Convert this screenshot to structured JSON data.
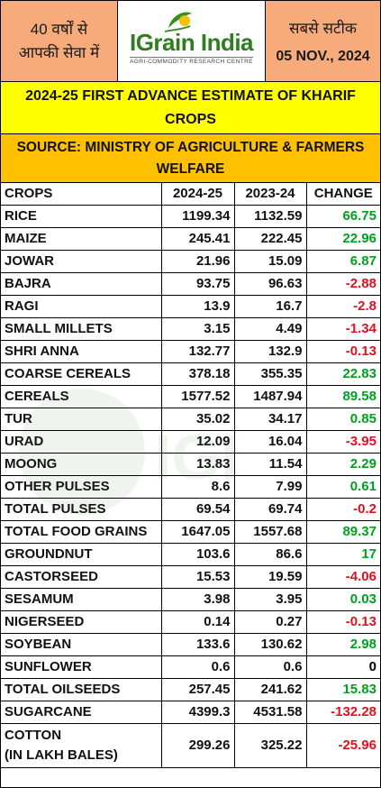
{
  "header": {
    "left_line1": "40 वर्षों से",
    "left_line2": "आपकी सेवा में",
    "brand_name": "IGrain India",
    "brand_tagline": "AGRI-COMMODITY RESEARCH CENTRE",
    "right_line1": "सबसे सटीक",
    "date": "05 NOV., 2024"
  },
  "title": "2024-25 FIRST ADVANCE ESTIMATE OF KHARIF CROPS",
  "source": "SOURCE: MINISTRY OF AGRICULTURE & FARMERS WELFARE",
  "table": {
    "headers": [
      "CROPS",
      "2024-25",
      "2023-24",
      "CHANGE"
    ],
    "rows": [
      {
        "crop": "RICE",
        "y2425": "1199.34",
        "y2324": "1132.59",
        "change": "66.75",
        "sign": "pos"
      },
      {
        "crop": "MAIZE",
        "y2425": "245.41",
        "y2324": "222.45",
        "change": "22.96",
        "sign": "pos"
      },
      {
        "crop": "JOWAR",
        "y2425": "21.96",
        "y2324": "15.09",
        "change": "6.87",
        "sign": "pos"
      },
      {
        "crop": "BAJRA",
        "y2425": "93.75",
        "y2324": "96.63",
        "change": "-2.88",
        "sign": "neg"
      },
      {
        "crop": "RAGI",
        "y2425": "13.9",
        "y2324": "16.7",
        "change": "-2.8",
        "sign": "neg"
      },
      {
        "crop": "SMALL MILLETS",
        "y2425": "3.15",
        "y2324": "4.49",
        "change": "-1.34",
        "sign": "neg"
      },
      {
        "crop": "SHRI ANNA",
        "y2425": "132.77",
        "y2324": "132.9",
        "change": "-0.13",
        "sign": "neg"
      },
      {
        "crop": "COARSE CEREALS",
        "y2425": "378.18",
        "y2324": "355.35",
        "change": "22.83",
        "sign": "pos"
      },
      {
        "crop": "CEREALS",
        "y2425": "1577.52",
        "y2324": "1487.94",
        "change": "89.58",
        "sign": "pos"
      },
      {
        "crop": "TUR",
        "y2425": "35.02",
        "y2324": "34.17",
        "change": "0.85",
        "sign": "pos"
      },
      {
        "crop": "URAD",
        "y2425": "12.09",
        "y2324": "16.04",
        "change": "-3.95",
        "sign": "neg"
      },
      {
        "crop": "MOONG",
        "y2425": "13.83",
        "y2324": "11.54",
        "change": "2.29",
        "sign": "pos"
      },
      {
        "crop": "OTHER PULSES",
        "y2425": "8.6",
        "y2324": "7.99",
        "change": "0.61",
        "sign": "pos"
      },
      {
        "crop": "TOTAL PULSES",
        "y2425": "69.54",
        "y2324": "69.74",
        "change": "-0.2",
        "sign": "neg"
      },
      {
        "crop": "TOTAL FOOD GRAINS",
        "y2425": "1647.05",
        "y2324": "1557.68",
        "change": "89.37",
        "sign": "pos"
      },
      {
        "crop": "GROUNDNUT",
        "y2425": "103.6",
        "y2324": "86.6",
        "change": "17",
        "sign": "pos"
      },
      {
        "crop": "CASTORSEED",
        "y2425": "15.53",
        "y2324": "19.59",
        "change": "-4.06",
        "sign": "neg"
      },
      {
        "crop": "SESAMUM",
        "y2425": "3.98",
        "y2324": "3.95",
        "change": "0.03",
        "sign": "pos"
      },
      {
        "crop": "NIGERSEED",
        "y2425": "0.14",
        "y2324": "0.27",
        "change": "-0.13",
        "sign": "neg"
      },
      {
        "crop": "SOYBEAN",
        "y2425": "133.6",
        "y2324": "130.62",
        "change": "2.98",
        "sign": "pos"
      },
      {
        "crop": "SUNFLOWER",
        "y2425": "0.6",
        "y2324": "0.6",
        "change": "0",
        "sign": "zero"
      },
      {
        "crop": "TOTAL OILSEEDS",
        "y2425": "257.45",
        "y2324": "241.62",
        "change": "15.83",
        "sign": "pos"
      },
      {
        "crop": "SUGARCANE",
        "y2425": "4399.3",
        "y2324": "4531.58",
        "change": "-132.28",
        "sign": "neg"
      }
    ],
    "cotton": {
      "crop_line1": "COTTON",
      "crop_line2": "(IN LAKH BALES)",
      "y2425": "299.26",
      "y2324": "325.22",
      "change": "-25.96",
      "sign": "neg"
    }
  },
  "colors": {
    "header_bg": "#f7ab7a",
    "title_bg": "#ffff00",
    "source_bg": "#ffc000",
    "positive": "#00a020",
    "negative": "#e01020"
  }
}
